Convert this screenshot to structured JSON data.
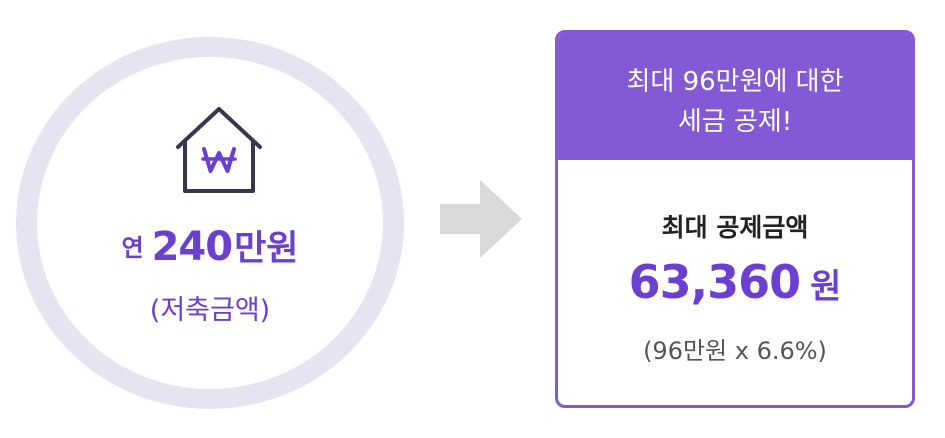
{
  "saving": {
    "prefix": "연",
    "amount": "240",
    "unit": "만원",
    "label": "(저축금액)"
  },
  "icons": {
    "house": "house-won-icon",
    "arrow": "arrow-right-icon"
  },
  "card": {
    "header_line1": "최대 96만원에 대한",
    "header_line2": "세금 공제!",
    "subtitle": "최대 공제금액",
    "value": "63,360",
    "value_unit": "원",
    "formula": "(96만원 x 6.6%)"
  },
  "colors": {
    "accent": "#6a3fd1",
    "card_header": "#8359d6",
    "ring": "#e7e4f1",
    "arrow": "#d9d9d9",
    "house_stroke": "#3a3650"
  }
}
